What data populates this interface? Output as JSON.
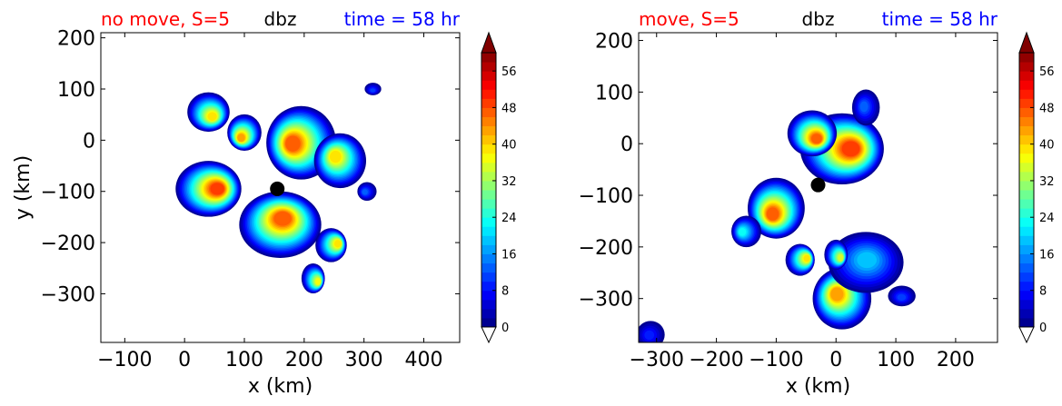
{
  "chart_data": [
    {
      "type": "heatmap",
      "title_left": "no move, S=5",
      "title_center": "dbz",
      "title_right": "time = 58 hr",
      "xlabel": "x (km)",
      "ylabel": "y (km)",
      "xlim": [
        -140,
        460
      ],
      "ylim": [
        -395,
        210
      ],
      "xticks": [
        -100,
        0,
        100,
        200,
        300,
        400
      ],
      "xtick_labels": [
        "−100",
        "0",
        "100",
        "200",
        "300",
        "400"
      ],
      "yticks": [
        -300,
        -200,
        -100,
        0,
        100,
        200
      ],
      "ytick_labels": [
        "−300",
        "−200",
        "−100",
        "0",
        "100",
        "200"
      ],
      "center_marker": {
        "x": 155,
        "y": -95
      },
      "cells": [
        {
          "x": 40,
          "y": -95,
          "r": 55,
          "peak": 50
        },
        {
          "x": 40,
          "y": 55,
          "r": 30,
          "peak": 40
        },
        {
          "x": 100,
          "y": 15,
          "r": 30,
          "peak": 44
        },
        {
          "x": 195,
          "y": -5,
          "r": 70,
          "peak": 48
        },
        {
          "x": 260,
          "y": -40,
          "r": 40,
          "peak": 40
        },
        {
          "x": 160,
          "y": -165,
          "r": 60,
          "peak": 48
        },
        {
          "x": 245,
          "y": -205,
          "r": 30,
          "peak": 40
        },
        {
          "x": 215,
          "y": -270,
          "r": 22,
          "peak": 38
        },
        {
          "x": 315,
          "y": 100,
          "r": 12,
          "peak": 12
        },
        {
          "x": 305,
          "y": -100,
          "r": 15,
          "peak": 14
        }
      ],
      "colorbar": {
        "min": 0,
        "max": 60,
        "tick_values": [
          0,
          8,
          16,
          24,
          32,
          40,
          48,
          56
        ],
        "tick_labels": [
          "0",
          "8",
          "16",
          "24",
          "32",
          "40",
          "48",
          "56"
        ],
        "extend": "both"
      }
    },
    {
      "type": "heatmap",
      "title_left": "move, S=5",
      "title_center": "dbz",
      "title_right": "time = 58 hr",
      "xlabel": "x (km)",
      "ylabel": "",
      "xlim": [
        -330,
        270
      ],
      "ylim": [
        -385,
        215
      ],
      "xticks": [
        -300,
        -200,
        -100,
        0,
        100,
        200
      ],
      "xtick_labels": [
        "−300",
        "−200",
        "−100",
        "0",
        "100",
        "200"
      ],
      "yticks": [
        -300,
        -200,
        -100,
        0,
        100,
        200
      ],
      "ytick_labels": [
        "−300",
        "−200",
        "−100",
        "0",
        "100",
        "200"
      ],
      "center_marker": {
        "x": -30,
        "y": -80
      },
      "cells": [
        {
          "x": 10,
          "y": -10,
          "r": 70,
          "peak": 50
        },
        {
          "x": -40,
          "y": 20,
          "r": 35,
          "peak": 48
        },
        {
          "x": -100,
          "y": -125,
          "r": 50,
          "peak": 48
        },
        {
          "x": -150,
          "y": -170,
          "r": 30,
          "peak": 24
        },
        {
          "x": 10,
          "y": -300,
          "r": 45,
          "peak": 44
        },
        {
          "x": 50,
          "y": -230,
          "r": 55,
          "peak": 20
        },
        {
          "x": -60,
          "y": -225,
          "r": 28,
          "peak": 40
        },
        {
          "x": 0,
          "y": -215,
          "r": 22,
          "peak": 36
        },
        {
          "x": 110,
          "y": -295,
          "r": 20,
          "peak": 12
        },
        {
          "x": -310,
          "y": -370,
          "r": 22,
          "peak": 10
        },
        {
          "x": 50,
          "y": 70,
          "r": 28,
          "peak": 14
        }
      ],
      "colorbar": {
        "min": 0,
        "max": 60,
        "tick_values": [
          0,
          8,
          16,
          24,
          32,
          40,
          48,
          56
        ],
        "tick_labels": [
          "0",
          "8",
          "16",
          "24",
          "32",
          "40",
          "48",
          "56"
        ],
        "extend": "both"
      }
    }
  ]
}
